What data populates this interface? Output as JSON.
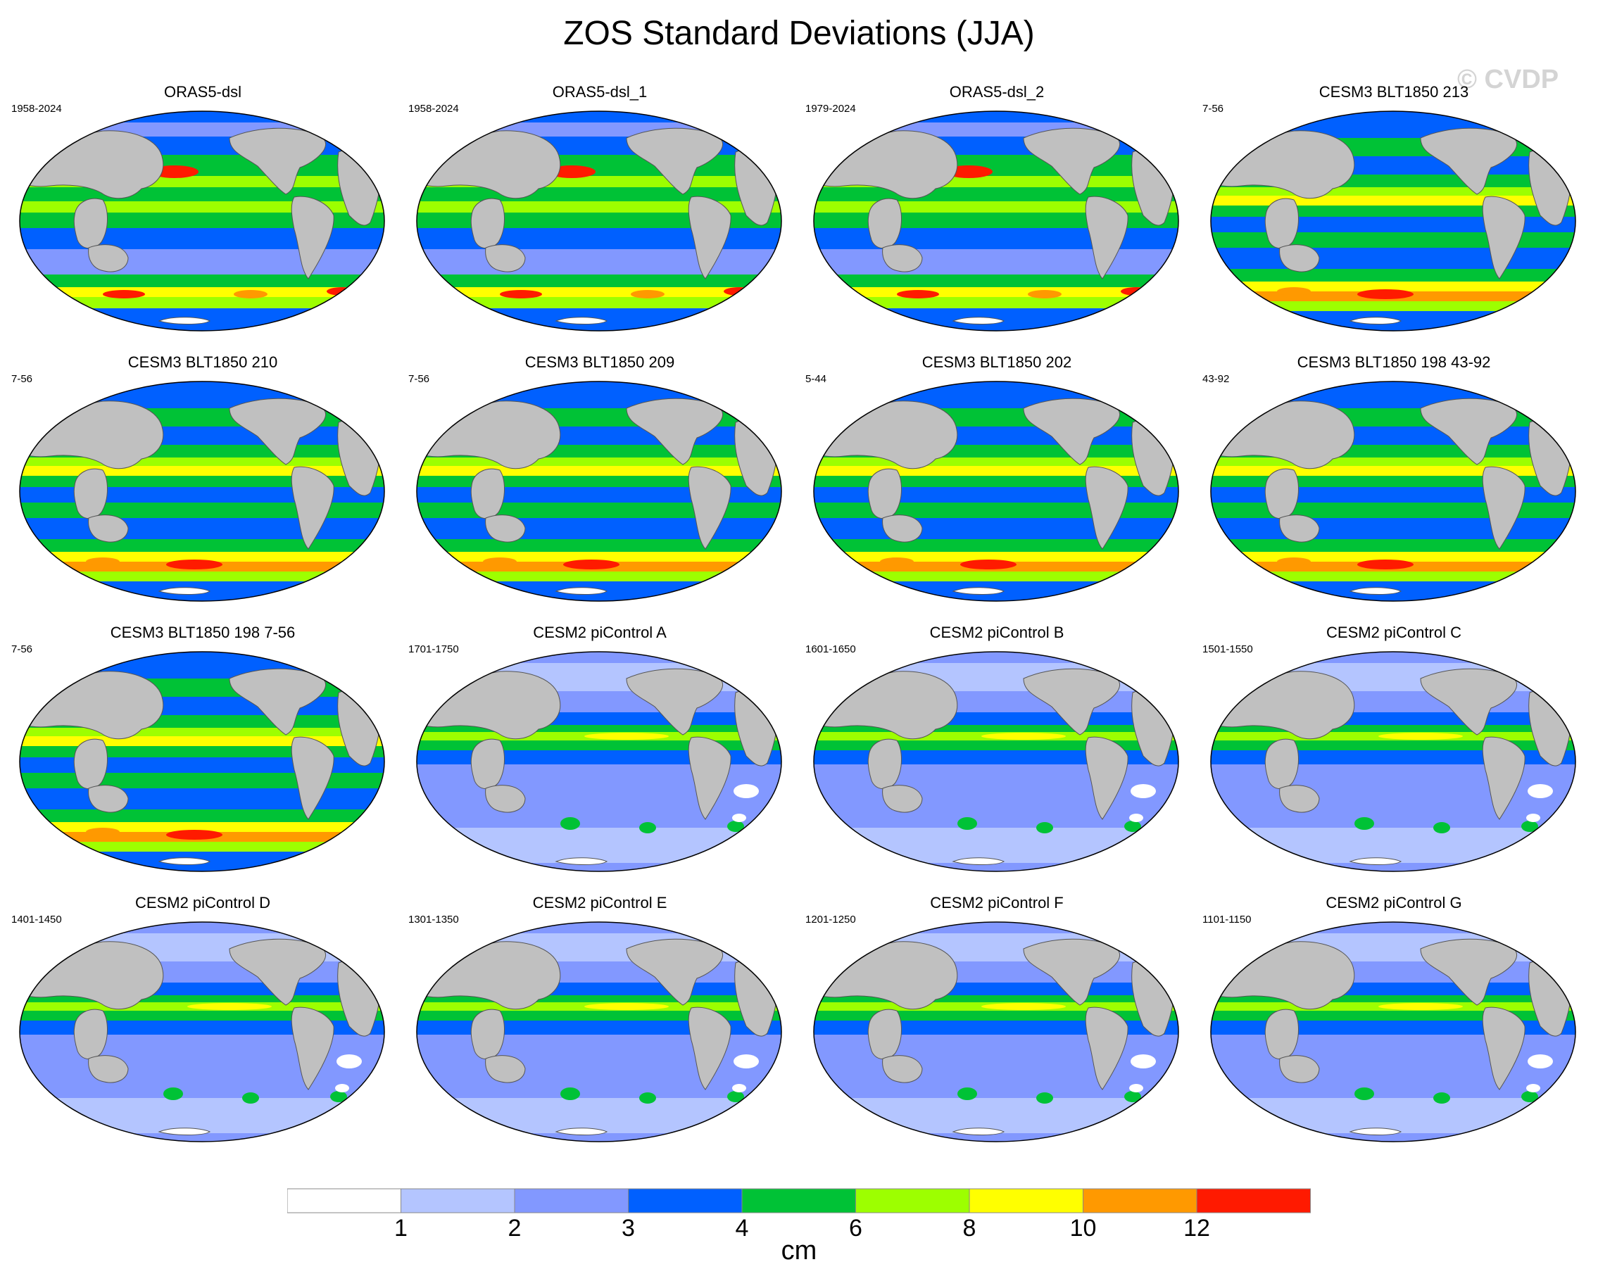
{
  "title": "ZOS Standard Deviations (JJA)",
  "watermark": "© CVDP",
  "colors": {
    "land": "#c0c0c0",
    "bins": [
      "#ffffff",
      "#b4c5ff",
      "#8298ff",
      "#0060ff",
      "#00c236",
      "#9dff00",
      "#ffff00",
      "#ff9900",
      "#ff1a00"
    ]
  },
  "panels": [
    {
      "title": "ORAS5-dsl",
      "period": "1958-2024",
      "style": "oras"
    },
    {
      "title": "ORAS5-dsl_1",
      "period": "1958-2024",
      "style": "oras"
    },
    {
      "title": "ORAS5-dsl_2",
      "period": "1979-2024",
      "style": "oras"
    },
    {
      "title": "CESM3 BLT1850 213",
      "period": "7-56",
      "style": "cesm3"
    },
    {
      "title": "CESM3 BLT1850 210",
      "period": "7-56",
      "style": "cesm3"
    },
    {
      "title": "CESM3 BLT1850 209",
      "period": "7-56",
      "style": "cesm3"
    },
    {
      "title": "CESM3 BLT1850 202",
      "period": "5-44",
      "style": "cesm3"
    },
    {
      "title": "CESM3 BLT1850 198 43-92",
      "period": "43-92",
      "style": "cesm3"
    },
    {
      "title": "CESM3 BLT1850 198 7-56",
      "period": "7-56",
      "style": "cesm3"
    },
    {
      "title": "CESM2 piControl A",
      "period": "1701-1750",
      "style": "cesm2"
    },
    {
      "title": "CESM2 piControl B",
      "period": "1601-1650",
      "style": "cesm2"
    },
    {
      "title": "CESM2 piControl C",
      "period": "1501-1550",
      "style": "cesm2"
    },
    {
      "title": "CESM2 piControl D",
      "period": "1401-1450",
      "style": "cesm2"
    },
    {
      "title": "CESM2 piControl E",
      "period": "1301-1350",
      "style": "cesm2"
    },
    {
      "title": "CESM2 piControl F",
      "period": "1201-1250",
      "style": "cesm2"
    },
    {
      "title": "CESM2 piControl G",
      "period": "1101-1150",
      "style": "cesm2"
    }
  ],
  "colorbar": {
    "levels": [
      "1",
      "2",
      "3",
      "4",
      "6",
      "8",
      "10",
      "12"
    ],
    "units": "cm"
  }
}
